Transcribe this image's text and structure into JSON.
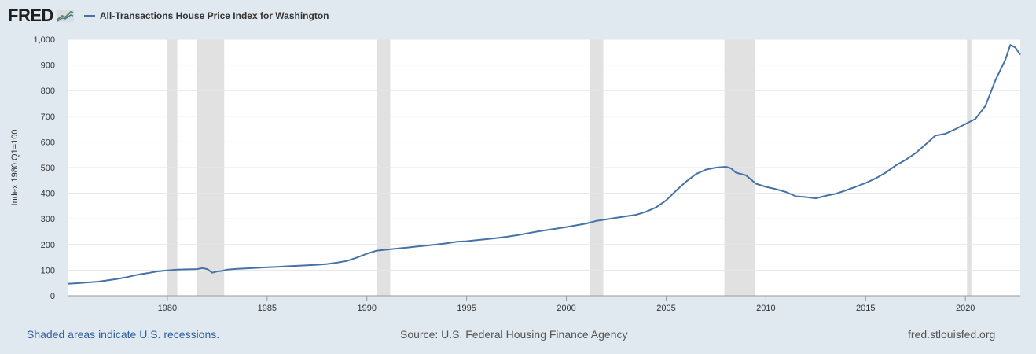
{
  "header": {
    "logo_text": "FRED",
    "legend_label": "All-Transactions House Price Index for Washington"
  },
  "footer": {
    "recession_note": "Shaded areas indicate U.S. recessions.",
    "source": "Source: U.S. Federal Housing Finance Agency",
    "site": "fred.stlouisfed.org"
  },
  "colors": {
    "line": "#4572a7",
    "recession": "#e1e1e1",
    "background": "#e1e9f0",
    "plot": "#ffffff",
    "grid": "#e6e6e6"
  },
  "chart_data": {
    "type": "line",
    "title": "",
    "xlabel": "",
    "ylabel": "Index 1980:Q1=100",
    "xlim": [
      1975.0,
      2022.75
    ],
    "ylim": [
      0,
      1000
    ],
    "x_ticks": [
      1980,
      1985,
      1990,
      1995,
      2000,
      2005,
      2010,
      2015,
      2020
    ],
    "y_ticks": [
      0,
      100,
      200,
      300,
      400,
      500,
      600,
      700,
      800,
      900,
      1000
    ],
    "y_tick_labels": [
      "0",
      "100",
      "200",
      "300",
      "400",
      "500",
      "600",
      "700",
      "800",
      "900",
      "1,000"
    ],
    "grid": true,
    "legend_position": "top-left",
    "recessions": [
      [
        1980.0,
        1980.5
      ],
      [
        1981.5,
        1982.85
      ],
      [
        1990.5,
        1991.17
      ],
      [
        2001.17,
        2001.85
      ],
      [
        2007.92,
        2009.45
      ],
      [
        2020.08,
        2020.3
      ]
    ],
    "series": [
      {
        "name": "All-Transactions House Price Index for Washington",
        "points": [
          [
            1975.0,
            47
          ],
          [
            1975.5,
            49
          ],
          [
            1976.0,
            52
          ],
          [
            1976.5,
            55
          ],
          [
            1977.0,
            60
          ],
          [
            1977.5,
            66
          ],
          [
            1978.0,
            73
          ],
          [
            1978.5,
            82
          ],
          [
            1979.0,
            88
          ],
          [
            1979.5,
            95
          ],
          [
            1980.0,
            99
          ],
          [
            1980.5,
            102
          ],
          [
            1981.0,
            103
          ],
          [
            1981.5,
            104
          ],
          [
            1981.75,
            108
          ],
          [
            1982.0,
            104
          ],
          [
            1982.25,
            90
          ],
          [
            1982.5,
            95
          ],
          [
            1982.75,
            97
          ],
          [
            1983.0,
            102
          ],
          [
            1983.5,
            105
          ],
          [
            1984.0,
            107
          ],
          [
            1984.5,
            109
          ],
          [
            1985.0,
            111
          ],
          [
            1985.5,
            113
          ],
          [
            1986.0,
            115
          ],
          [
            1986.5,
            117
          ],
          [
            1987.0,
            119
          ],
          [
            1987.5,
            121
          ],
          [
            1988.0,
            124
          ],
          [
            1988.5,
            129
          ],
          [
            1989.0,
            136
          ],
          [
            1989.5,
            149
          ],
          [
            1990.0,
            164
          ],
          [
            1990.5,
            176
          ],
          [
            1991.0,
            180
          ],
          [
            1991.5,
            184
          ],
          [
            1992.0,
            188
          ],
          [
            1992.5,
            192
          ],
          [
            1993.0,
            196
          ],
          [
            1993.5,
            200
          ],
          [
            1994.0,
            205
          ],
          [
            1994.5,
            211
          ],
          [
            1995.0,
            213
          ],
          [
            1995.5,
            217
          ],
          [
            1996.0,
            221
          ],
          [
            1996.5,
            225
          ],
          [
            1997.0,
            230
          ],
          [
            1997.5,
            236
          ],
          [
            1998.0,
            243
          ],
          [
            1998.5,
            250
          ],
          [
            1999.0,
            256
          ],
          [
            1999.5,
            262
          ],
          [
            2000.0,
            268
          ],
          [
            2000.5,
            275
          ],
          [
            2001.0,
            282
          ],
          [
            2001.5,
            292
          ],
          [
            2002.0,
            298
          ],
          [
            2002.5,
            304
          ],
          [
            2003.0,
            310
          ],
          [
            2003.5,
            316
          ],
          [
            2004.0,
            328
          ],
          [
            2004.5,
            345
          ],
          [
            2005.0,
            372
          ],
          [
            2005.5,
            410
          ],
          [
            2006.0,
            445
          ],
          [
            2006.5,
            475
          ],
          [
            2007.0,
            492
          ],
          [
            2007.5,
            500
          ],
          [
            2008.0,
            503
          ],
          [
            2008.25,
            497
          ],
          [
            2008.5,
            480
          ],
          [
            2009.0,
            470
          ],
          [
            2009.5,
            437
          ],
          [
            2010.0,
            425
          ],
          [
            2010.5,
            416
          ],
          [
            2011.0,
            405
          ],
          [
            2011.5,
            388
          ],
          [
            2012.0,
            385
          ],
          [
            2012.5,
            380
          ],
          [
            2013.0,
            390
          ],
          [
            2013.5,
            398
          ],
          [
            2014.0,
            411
          ],
          [
            2014.5,
            425
          ],
          [
            2015.0,
            440
          ],
          [
            2015.5,
            458
          ],
          [
            2016.0,
            480
          ],
          [
            2016.5,
            508
          ],
          [
            2017.0,
            530
          ],
          [
            2017.5,
            556
          ],
          [
            2018.0,
            590
          ],
          [
            2018.5,
            625
          ],
          [
            2019.0,
            632
          ],
          [
            2019.5,
            650
          ],
          [
            2020.0,
            670
          ],
          [
            2020.5,
            690
          ],
          [
            2021.0,
            740
          ],
          [
            2021.5,
            840
          ],
          [
            2021.75,
            880
          ],
          [
            2022.0,
            920
          ],
          [
            2022.25,
            978
          ],
          [
            2022.5,
            968
          ],
          [
            2022.75,
            940
          ]
        ]
      }
    ]
  }
}
